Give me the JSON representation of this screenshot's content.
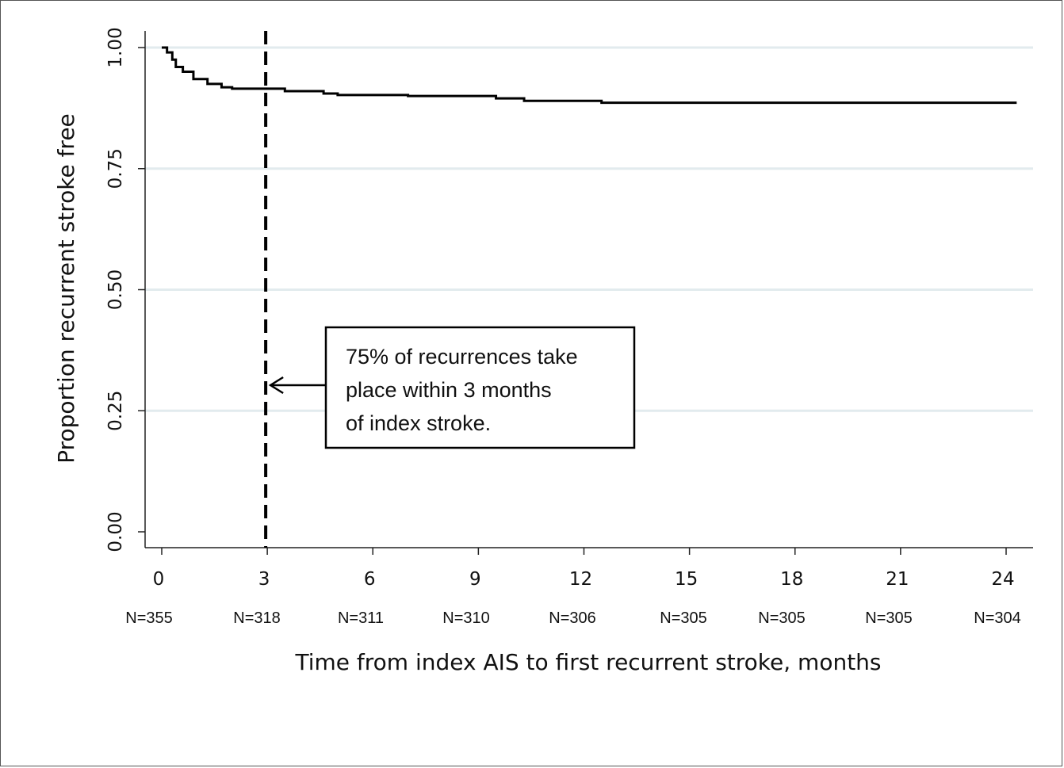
{
  "chart_data": {
    "type": "line",
    "step": true,
    "xlabel": "Time from index AIS to first recurrent stroke, months",
    "ylabel": "Proportion recurrent stroke free",
    "xlim": [
      0,
      24.5
    ],
    "ylim": [
      0,
      1.03
    ],
    "xticks": [
      0,
      3,
      6,
      9,
      12,
      15,
      18,
      21,
      24
    ],
    "yticks": [
      0.0,
      0.25,
      0.5,
      0.75,
      1.0
    ],
    "ytick_labels": [
      "0.00",
      "0.25",
      "0.50",
      "0.75",
      "1.00"
    ],
    "grid": "horizontal",
    "series": [
      {
        "x": [
          0,
          0.15,
          0.3,
          0.4,
          0.6,
          0.9,
          1.3,
          1.7,
          2.0,
          3.0,
          3.5,
          4.6,
          5.0,
          7.0,
          9.5,
          10.3,
          12.5,
          24.3
        ],
        "y": [
          1.0,
          0.99,
          0.975,
          0.96,
          0.95,
          0.935,
          0.925,
          0.918,
          0.915,
          0.915,
          0.91,
          0.905,
          0.902,
          0.9,
          0.895,
          0.89,
          0.886,
          0.886
        ]
      }
    ],
    "reference_line": {
      "x": 3,
      "style": "dashed"
    },
    "annotation": {
      "lines": [
        "75% of recurrences take",
        "place within 3 months",
        "of index stroke."
      ],
      "arrow_target_x": 3,
      "arrow_y": 0.305
    },
    "number_at_risk": {
      "labels": [
        "N=355",
        "N=318",
        "N=311",
        "N=310",
        "N=306",
        "N=305",
        "N=305",
        "N=305",
        "N=304"
      ]
    }
  }
}
